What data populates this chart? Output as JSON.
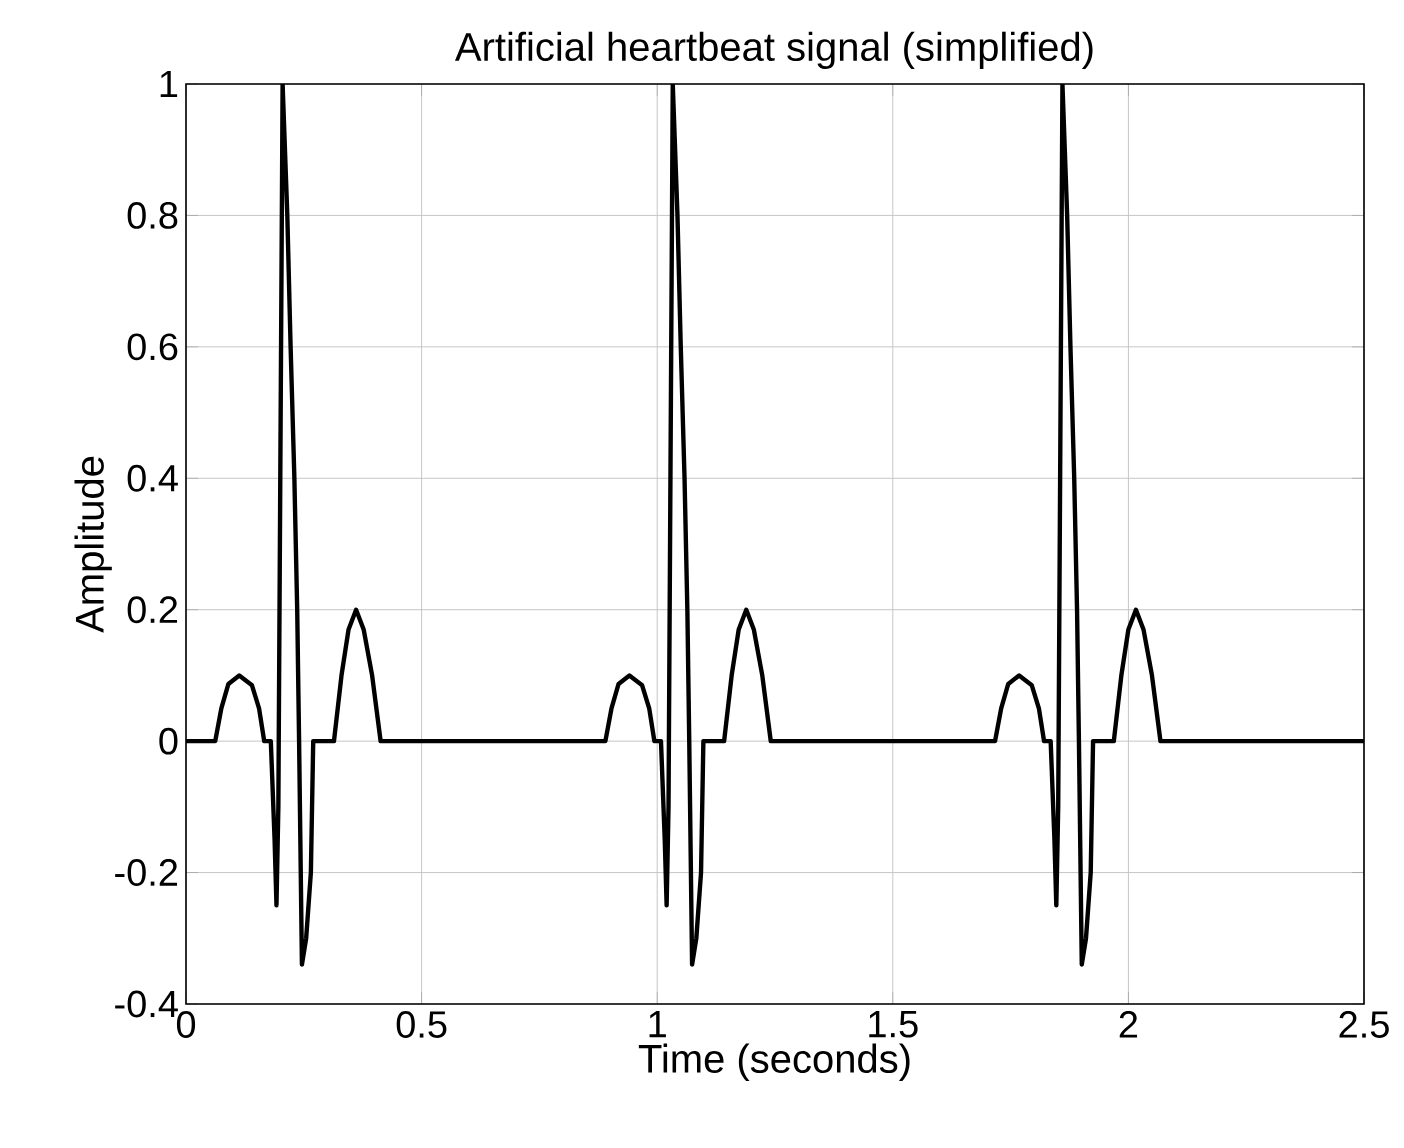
{
  "chart_data": {
    "type": "line",
    "title": "Artificial heartbeat signal (simplified)",
    "xlabel": "Time (seconds)",
    "ylabel": "Amplitude",
    "x": [
      0,
      0.062,
      0.075,
      0.09,
      0.113,
      0.14,
      0.155,
      0.166,
      0.18,
      0.188,
      0.192,
      0.196,
      0.205,
      0.215,
      0.222,
      0.23,
      0.236,
      0.24,
      0.246,
      0.255,
      0.265,
      0.27,
      0.314,
      0.33,
      0.345,
      0.361,
      0.377,
      0.395,
      0.413,
      0.89,
      0.903,
      0.918,
      0.941,
      0.968,
      0.983,
      0.994,
      1.008,
      1.016,
      1.02,
      1.024,
      1.033,
      1.043,
      1.05,
      1.058,
      1.064,
      1.068,
      1.074,
      1.083,
      1.093,
      1.098,
      1.142,
      1.158,
      1.173,
      1.189,
      1.205,
      1.223,
      1.241,
      1.717,
      1.73,
      1.745,
      1.768,
      1.795,
      1.81,
      1.821,
      1.835,
      1.843,
      1.847,
      1.851,
      1.86,
      1.87,
      1.877,
      1.885,
      1.891,
      1.895,
      1.901,
      1.91,
      1.92,
      1.925,
      1.969,
      1.985,
      2.0,
      2.016,
      2.032,
      2.05,
      2.068,
      2.5
    ],
    "values": [
      0,
      0,
      0.05,
      0.087,
      0.1,
      0.085,
      0.05,
      0,
      0,
      -0.15,
      -0.25,
      -0.1,
      1,
      0.8,
      0.6,
      0.4,
      0.2,
      0,
      -0.34,
      -0.3,
      -0.2,
      0,
      0,
      0.1,
      0.17,
      0.2,
      0.17,
      0.1,
      0,
      0,
      0.05,
      0.087,
      0.1,
      0.085,
      0.05,
      0,
      0,
      -0.15,
      -0.25,
      -0.1,
      1,
      0.8,
      0.6,
      0.4,
      0.2,
      0,
      -0.34,
      -0.3,
      -0.2,
      0,
      0,
      0.1,
      0.17,
      0.2,
      0.17,
      0.1,
      0,
      0,
      0.05,
      0.087,
      0.1,
      0.085,
      0.05,
      0,
      0,
      -0.15,
      -0.25,
      -0.1,
      1,
      0.8,
      0.6,
      0.4,
      0.2,
      0,
      -0.34,
      -0.3,
      -0.2,
      0,
      0,
      0.1,
      0.17,
      0.2,
      0.17,
      0.1,
      0,
      0
    ],
    "color": "#000000",
    "line_style": "solid",
    "xlim": [
      0,
      2.5
    ],
    "ylim": [
      -0.4,
      1
    ],
    "xticks": [
      0,
      0.5,
      1,
      1.5,
      2,
      2.5
    ],
    "yticks": [
      -0.4,
      -0.2,
      0,
      0.2,
      0.4,
      0.6,
      0.8,
      1
    ],
    "grid": true
  }
}
